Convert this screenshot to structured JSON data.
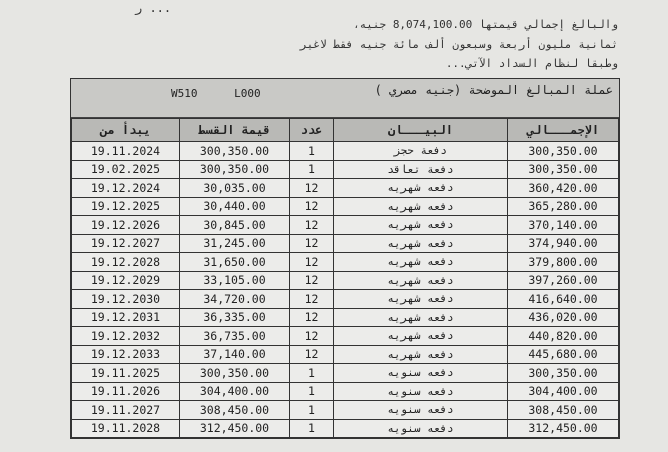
{
  "top_cut": "... ر",
  "intro": {
    "line1": "والبالغ إجمالي قيمتها   8,074,100.00  جنيه،",
    "line2": "ثمانية مليون أربعة وسبعون ألف مائة   جنيه فقط لاغير",
    "line3": "وطبقا لنظام السداد الآتي..."
  },
  "table": {
    "currency_label": "عملة المبالغ الموضحة (جنيه مصري )",
    "code1": "W510",
    "code2": "L000",
    "headers": {
      "start": "يبدأ من",
      "installment": "قيمة القسط",
      "count": "عدد",
      "description": "البيـــان",
      "total": "الإجمـــالي"
    },
    "rows": [
      {
        "start": "19.11.2024",
        "installment": "300,350.00",
        "count": "1",
        "description": "دفعة حجز",
        "total": "300,350.00"
      },
      {
        "start": "19.02.2025",
        "installment": "300,350.00",
        "count": "1",
        "description": "دفعة تعاقد",
        "total": "300,350.00"
      },
      {
        "start": "19.12.2024",
        "installment": "30,035.00",
        "count": "12",
        "description": "دفعه شهريه",
        "total": "360,420.00"
      },
      {
        "start": "19.12.2025",
        "installment": "30,440.00",
        "count": "12",
        "description": "دفعه شهريه",
        "total": "365,280.00"
      },
      {
        "start": "19.12.2026",
        "installment": "30,845.00",
        "count": "12",
        "description": "دفعه شهريه",
        "total": "370,140.00"
      },
      {
        "start": "19.12.2027",
        "installment": "31,245.00",
        "count": "12",
        "description": "دفعه شهريه",
        "total": "374,940.00"
      },
      {
        "start": "19.12.2028",
        "installment": "31,650.00",
        "count": "12",
        "description": "دفعه شهريه",
        "total": "379,800.00"
      },
      {
        "start": "19.12.2029",
        "installment": "33,105.00",
        "count": "12",
        "description": "دفعه شهريه",
        "total": "397,260.00"
      },
      {
        "start": "19.12.2030",
        "installment": "34,720.00",
        "count": "12",
        "description": "دفعه شهريه",
        "total": "416,640.00"
      },
      {
        "start": "19.12.2031",
        "installment": "36,335.00",
        "count": "12",
        "description": "دفعه شهريه",
        "total": "436,020.00"
      },
      {
        "start": "19.12.2032",
        "installment": "36,735.00",
        "count": "12",
        "description": "دفعه شهريه",
        "total": "440,820.00"
      },
      {
        "start": "19.12.2033",
        "installment": "37,140.00",
        "count": "12",
        "description": "دفعه شهريه",
        "total": "445,680.00"
      },
      {
        "start": "19.11.2025",
        "installment": "300,350.00",
        "count": "1",
        "description": "دفعه سنويه",
        "total": "300,350.00"
      },
      {
        "start": "19.11.2026",
        "installment": "304,400.00",
        "count": "1",
        "description": "دفعه سنويه",
        "total": "304,400.00"
      },
      {
        "start": "19.11.2027",
        "installment": "308,450.00",
        "count": "1",
        "description": "دفعه سنويه",
        "total": "308,450.00"
      },
      {
        "start": "19.11.2028",
        "installment": "312,450.00",
        "count": "1",
        "description": "دفعه سنويه",
        "total": "312,450.00"
      }
    ]
  }
}
